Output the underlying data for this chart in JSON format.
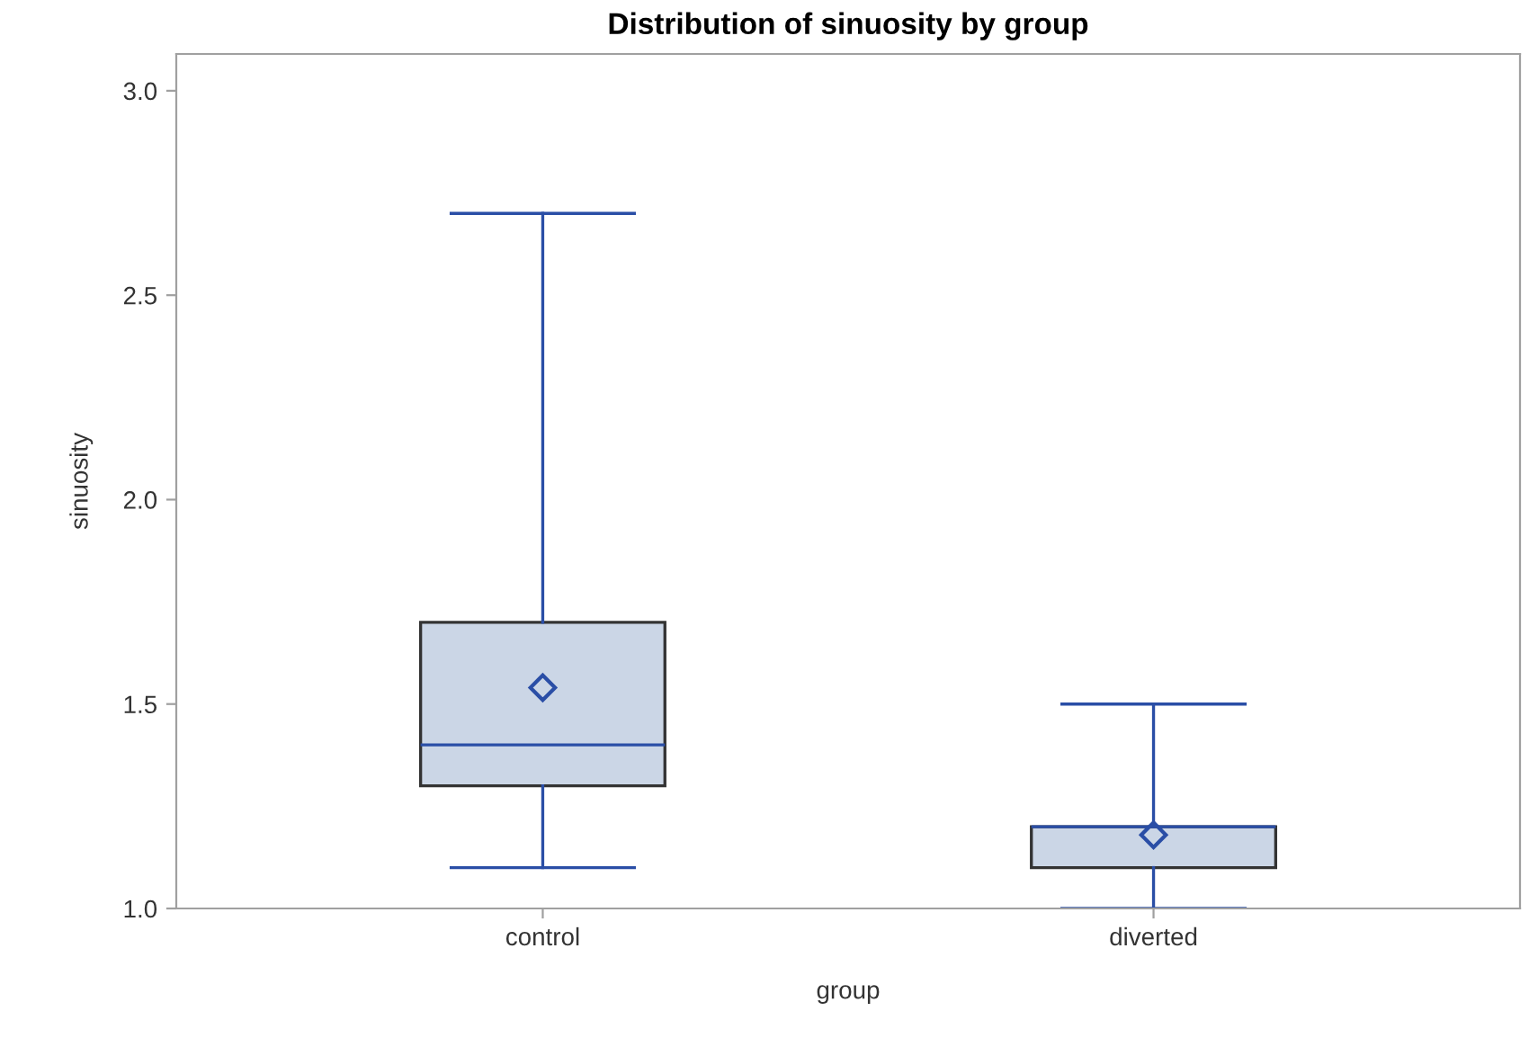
{
  "chart_data": {
    "type": "box",
    "title": "Distribution of sinuosity by group",
    "xlabel": "group",
    "ylabel": "sinuosity",
    "categories": [
      "control",
      "diverted"
    ],
    "boxes": [
      {
        "low": 1.1,
        "q1": 1.3,
        "median": 1.4,
        "q3": 1.7,
        "high": 2.7,
        "mean": 1.54
      },
      {
        "low": 1.0,
        "q1": 1.1,
        "median": 1.2,
        "q3": 1.2,
        "high": 1.5,
        "mean": 1.18
      }
    ],
    "color": "#cbd6e6",
    "ylim": [
      1.0,
      3.09
    ],
    "yticks": [
      {
        "value": 1.0,
        "label": "1.0"
      },
      {
        "value": 1.5,
        "label": "1.5"
      },
      {
        "value": 2.0,
        "label": "2.0"
      },
      {
        "value": 2.5,
        "label": "2.5"
      },
      {
        "value": 3.0,
        "label": "3.0"
      }
    ],
    "grid": false
  }
}
